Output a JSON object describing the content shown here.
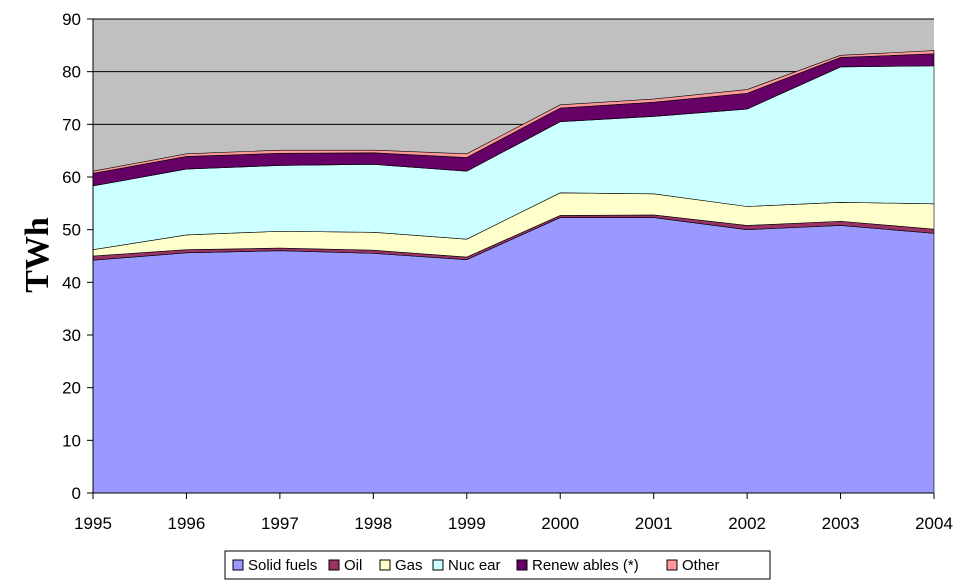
{
  "chart_data": {
    "type": "area",
    "stacked": true,
    "title": "",
    "xlabel": "",
    "ylabel": "TWh",
    "ylim": [
      0,
      90
    ],
    "yticks": [
      "0",
      "10",
      "20",
      "30",
      "40",
      "50",
      "60",
      "70",
      "80",
      "90"
    ],
    "x": [
      "1995",
      "1996",
      "1997",
      "1998",
      "1999",
      "2000",
      "2001",
      "2002",
      "2003",
      "2004"
    ],
    "grid": "horizontal",
    "legend_position": "bottom",
    "series": [
      {
        "name": "Solid fuels",
        "color": "#9999ff",
        "values": [
          44.2,
          45.6,
          46.0,
          45.5,
          44.3,
          52.3,
          52.3,
          50.0,
          50.8,
          49.3
        ]
      },
      {
        "name": "Oil",
        "color": "#993366",
        "values": [
          0.8,
          0.6,
          0.5,
          0.6,
          0.5,
          0.4,
          0.5,
          0.8,
          0.8,
          0.8
        ]
      },
      {
        "name": "Gas",
        "color": "#ffffcc",
        "values": [
          1.2,
          2.8,
          3.2,
          3.4,
          3.4,
          4.3,
          4.0,
          3.6,
          3.6,
          4.8
        ]
      },
      {
        "name": "Nuc ear",
        "color": "#ccffff",
        "values": [
          12.1,
          12.5,
          12.5,
          12.9,
          12.9,
          13.5,
          14.7,
          18.5,
          25.7,
          26.2
        ]
      },
      {
        "name": "Renew ables (*)",
        "color": "#660066",
        "values": [
          2.4,
          2.4,
          2.3,
          2.2,
          2.6,
          2.6,
          2.7,
          3.0,
          1.8,
          2.3
        ]
      },
      {
        "name": "Other",
        "color": "#ff9999",
        "values": [
          0.4,
          0.5,
          0.6,
          0.5,
          0.7,
          0.6,
          0.6,
          0.7,
          0.4,
          0.6
        ]
      }
    ]
  }
}
